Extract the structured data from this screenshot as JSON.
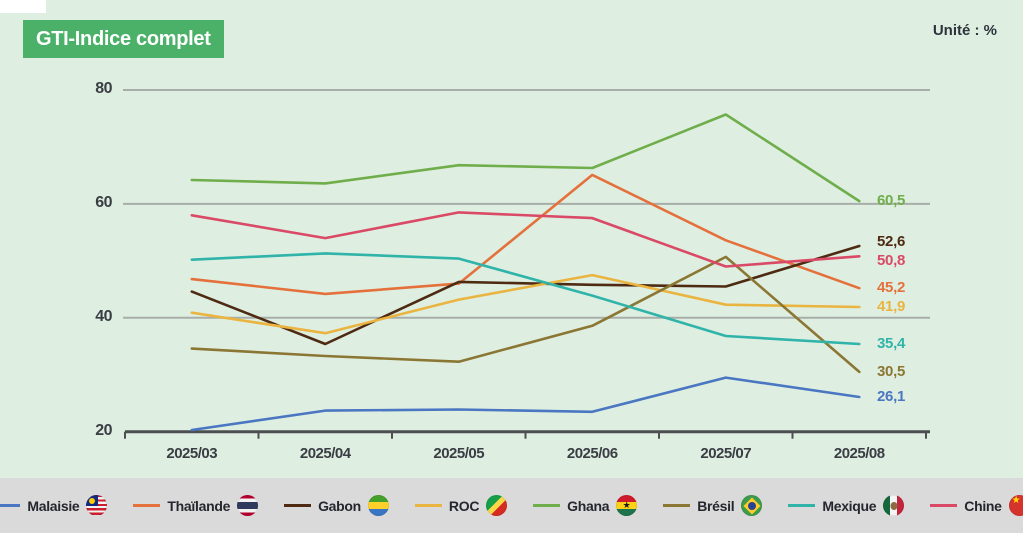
{
  "header": {
    "title": "GTI-Indice complet",
    "unit_label": "Unité : %"
  },
  "colors": {
    "background": "#deefe2",
    "title_box_green": "#4bb169",
    "legend_strip": "#d9dad9",
    "gridline": "#a9ada9",
    "axis": "#4c4e50",
    "axis_text": "#3a3d43"
  },
  "chart_data": {
    "type": "line",
    "title": "GTI-Indice complet",
    "unit": "%",
    "x_categories": [
      "2025/03",
      "2025/04",
      "2025/05",
      "2025/06",
      "2025/07",
      "2025/08"
    ],
    "y_ticks": [
      80,
      60,
      40,
      20
    ],
    "ylim": [
      20,
      80
    ],
    "grid": true,
    "legend_position": "bottom",
    "series": [
      {
        "name": "Malaisie",
        "color": "#4a76c2",
        "flag": "malaysia-flag-icon",
        "values": [
          20.3,
          23.7,
          23.9,
          23.5,
          29.5,
          26.1
        ],
        "end_label": "26,1"
      },
      {
        "name": "Thaïlande",
        "color": "#e4713c",
        "flag": "thailand-flag-icon",
        "values": [
          46.8,
          44.2,
          46.0,
          65.1,
          53.6,
          45.2
        ],
        "end_label": "45,2"
      },
      {
        "name": "Gabon",
        "color": "#4e2a12",
        "flag": "gabon-flag-icon",
        "values": [
          44.6,
          35.4,
          46.3,
          45.8,
          45.5,
          52.6
        ],
        "end_label": "52,6"
      },
      {
        "name": "ROC",
        "color": "#eab440",
        "flag": "congo-flag-icon",
        "values": [
          40.9,
          37.3,
          43.2,
          47.5,
          42.3,
          41.9
        ],
        "end_label": "41,9"
      },
      {
        "name": "Ghana",
        "color": "#70ad4b",
        "flag": "ghana-flag-icon",
        "values": [
          64.2,
          63.6,
          66.8,
          66.3,
          75.7,
          60.5
        ],
        "end_label": "60,5"
      },
      {
        "name": "Brésil",
        "color": "#8b7733",
        "flag": "brazil-flag-icon",
        "values": [
          34.6,
          33.3,
          32.3,
          38.6,
          50.7,
          30.5
        ],
        "end_label": "30,5"
      },
      {
        "name": "Mexique",
        "color": "#30b3a8",
        "flag": "mexico-flag-icon",
        "values": [
          50.2,
          51.3,
          50.4,
          43.9,
          36.8,
          35.4
        ],
        "end_label": "35,4"
      },
      {
        "name": "Chine",
        "color": "#da4a66",
        "flag": "china-flag-icon",
        "values": [
          58.0,
          54.0,
          58.5,
          57.5,
          49.0,
          50.8
        ],
        "end_label": "50,8"
      }
    ]
  }
}
